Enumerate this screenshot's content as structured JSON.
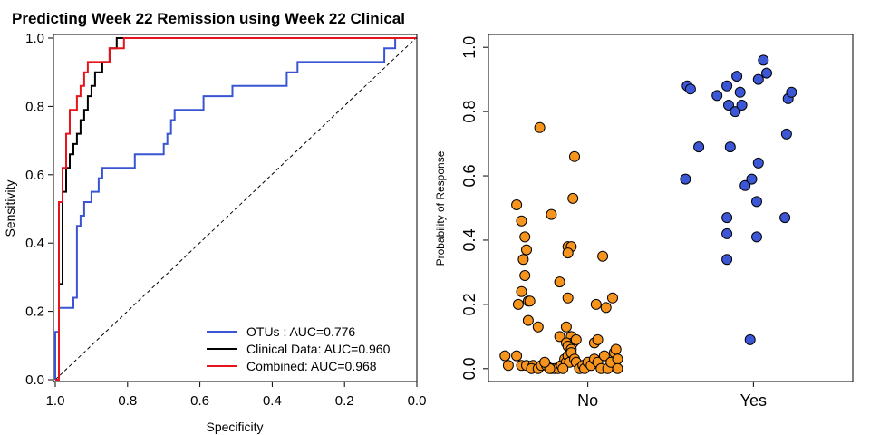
{
  "chart_data": [
    {
      "type": "line",
      "title": "Predicting Week 22 Remission using Week 22 Clinical",
      "xlabel": "Specificity",
      "ylabel": "Sensitivity",
      "xlim": [
        1.0,
        0.0
      ],
      "ylim": [
        0.0,
        1.0
      ],
      "x_reversed": true,
      "xticks": [
        "1.0",
        "0.8",
        "0.6",
        "0.4",
        "0.2",
        "0.0"
      ],
      "yticks": [
        "0.0",
        "0.2",
        "0.4",
        "0.6",
        "0.8",
        "1.0"
      ],
      "legend_position": "bottom-right",
      "reference_line": "diagonal dashed",
      "series": [
        {
          "name": "OTUs : AUC=0.776",
          "color": "#3955d3",
          "points": [
            [
              1.0,
              0.0
            ],
            [
              1.0,
              0.14
            ],
            [
              0.99,
              0.14
            ],
            [
              0.99,
              0.21
            ],
            [
              0.95,
              0.21
            ],
            [
              0.95,
              0.24
            ],
            [
              0.94,
              0.24
            ],
            [
              0.94,
              0.45
            ],
            [
              0.93,
              0.45
            ],
            [
              0.93,
              0.48
            ],
            [
              0.92,
              0.48
            ],
            [
              0.92,
              0.52
            ],
            [
              0.9,
              0.52
            ],
            [
              0.9,
              0.55
            ],
            [
              0.88,
              0.55
            ],
            [
              0.88,
              0.59
            ],
            [
              0.87,
              0.59
            ],
            [
              0.87,
              0.62
            ],
            [
              0.78,
              0.62
            ],
            [
              0.78,
              0.66
            ],
            [
              0.7,
              0.66
            ],
            [
              0.7,
              0.69
            ],
            [
              0.69,
              0.69
            ],
            [
              0.69,
              0.72
            ],
            [
              0.68,
              0.72
            ],
            [
              0.68,
              0.76
            ],
            [
              0.67,
              0.76
            ],
            [
              0.67,
              0.79
            ],
            [
              0.59,
              0.79
            ],
            [
              0.59,
              0.83
            ],
            [
              0.51,
              0.83
            ],
            [
              0.51,
              0.86
            ],
            [
              0.36,
              0.86
            ],
            [
              0.36,
              0.9
            ],
            [
              0.33,
              0.9
            ],
            [
              0.33,
              0.93
            ],
            [
              0.09,
              0.93
            ],
            [
              0.09,
              0.97
            ],
            [
              0.06,
              0.97
            ],
            [
              0.06,
              1.0
            ],
            [
              0.0,
              1.0
            ]
          ]
        },
        {
          "name": "Clinical Data: AUC=0.960",
          "color": "#000000",
          "points": [
            [
              1.0,
              0.0
            ],
            [
              0.99,
              0.0
            ],
            [
              0.99,
              0.28
            ],
            [
              0.98,
              0.28
            ],
            [
              0.98,
              0.55
            ],
            [
              0.97,
              0.55
            ],
            [
              0.97,
              0.62
            ],
            [
              0.96,
              0.62
            ],
            [
              0.96,
              0.66
            ],
            [
              0.95,
              0.66
            ],
            [
              0.95,
              0.69
            ],
            [
              0.94,
              0.69
            ],
            [
              0.94,
              0.72
            ],
            [
              0.93,
              0.72
            ],
            [
              0.93,
              0.76
            ],
            [
              0.92,
              0.76
            ],
            [
              0.92,
              0.79
            ],
            [
              0.91,
              0.79
            ],
            [
              0.91,
              0.83
            ],
            [
              0.9,
              0.83
            ],
            [
              0.9,
              0.86
            ],
            [
              0.89,
              0.86
            ],
            [
              0.89,
              0.9
            ],
            [
              0.87,
              0.9
            ],
            [
              0.87,
              0.93
            ],
            [
              0.85,
              0.93
            ],
            [
              0.85,
              0.97
            ],
            [
              0.83,
              0.97
            ],
            [
              0.83,
              1.0
            ],
            [
              0.0,
              1.0
            ]
          ]
        },
        {
          "name": "Combined: AUC=0.968",
          "color": "#e8141c",
          "points": [
            [
              1.0,
              0.0
            ],
            [
              0.99,
              0.0
            ],
            [
              0.99,
              0.52
            ],
            [
              0.98,
              0.52
            ],
            [
              0.98,
              0.62
            ],
            [
              0.97,
              0.62
            ],
            [
              0.97,
              0.72
            ],
            [
              0.96,
              0.72
            ],
            [
              0.96,
              0.79
            ],
            [
              0.94,
              0.79
            ],
            [
              0.94,
              0.83
            ],
            [
              0.93,
              0.83
            ],
            [
              0.93,
              0.86
            ],
            [
              0.92,
              0.86
            ],
            [
              0.92,
              0.9
            ],
            [
              0.91,
              0.9
            ],
            [
              0.91,
              0.93
            ],
            [
              0.85,
              0.93
            ],
            [
              0.85,
              0.97
            ],
            [
              0.81,
              0.97
            ],
            [
              0.81,
              1.0
            ],
            [
              0.0,
              1.0
            ]
          ]
        }
      ]
    },
    {
      "type": "scatter",
      "ylabel": "Probability of Response",
      "xlabel": "",
      "categories": [
        "No",
        "Yes"
      ],
      "yticks": [
        "0.0",
        "0.2",
        "0.4",
        "0.6",
        "0.8",
        "1.0"
      ],
      "ylim": [
        -0.04,
        1.04
      ],
      "series": [
        {
          "name": "No",
          "color": "#f7941d",
          "points": [
            [
              0.71,
              0.75
            ],
            [
              0.57,
              0.51
            ],
            [
              0.6,
              0.46
            ],
            [
              0.61,
              0.34
            ],
            [
              0.62,
              0.41
            ],
            [
              0.63,
              0.37
            ],
            [
              0.62,
              0.29
            ],
            [
              0.6,
              0.24
            ],
            [
              0.64,
              0.21
            ],
            [
              0.65,
              0.21
            ],
            [
              0.58,
              0.2
            ],
            [
              0.64,
              0.15
            ],
            [
              0.7,
              0.13
            ],
            [
              0.78,
              0.48
            ],
            [
              0.92,
              0.66
            ],
            [
              0.91,
              0.53
            ],
            [
              0.88,
              0.38
            ],
            [
              0.9,
              0.38
            ],
            [
              0.88,
              0.36
            ],
            [
              0.83,
              0.27
            ],
            [
              0.88,
              0.22
            ],
            [
              1.09,
              0.35
            ],
            [
              1.05,
              0.2
            ],
            [
              1.15,
              0.22
            ],
            [
              1.11,
              0.19
            ],
            [
              0.87,
              0.13
            ],
            [
              0.9,
              0.1
            ],
            [
              0.83,
              0.1
            ],
            [
              0.91,
              0.08
            ],
            [
              0.87,
              0.08
            ],
            [
              0.88,
              0.07
            ],
            [
              0.9,
              0.06
            ],
            [
              0.93,
              0.09
            ],
            [
              1.04,
              0.08
            ],
            [
              1.06,
              0.09
            ],
            [
              0.5,
              0.04
            ],
            [
              0.57,
              0.04
            ],
            [
              0.52,
              0.01
            ],
            [
              0.6,
              0.01
            ],
            [
              0.63,
              0.01
            ],
            [
              0.67,
              0.01
            ],
            [
              0.66,
              0.0
            ],
            [
              0.7,
              0.0
            ],
            [
              0.72,
              0.01
            ],
            [
              0.75,
              0.01
            ],
            [
              0.78,
              0.0
            ],
            [
              0.8,
              0.0
            ],
            [
              0.82,
              0.0
            ],
            [
              0.84,
              0.01
            ],
            [
              0.86,
              0.03
            ],
            [
              0.87,
              0.02
            ],
            [
              0.88,
              0.04
            ],
            [
              0.89,
              0.02
            ],
            [
              0.9,
              0.05
            ],
            [
              0.92,
              0.03
            ],
            [
              0.93,
              0.02
            ],
            [
              0.95,
              0.0
            ],
            [
              0.97,
              0.01
            ],
            [
              0.98,
              0.0
            ],
            [
              1.0,
              0.02
            ],
            [
              1.02,
              0.01
            ],
            [
              1.04,
              0.03
            ],
            [
              1.06,
              0.02
            ],
            [
              1.08,
              0.0
            ],
            [
              1.1,
              0.04
            ],
            [
              1.12,
              0.0
            ],
            [
              1.14,
              0.02
            ],
            [
              1.16,
              0.05
            ],
            [
              1.17,
              0.06
            ],
            [
              1.18,
              0.03
            ],
            [
              1.18,
              0.0
            ],
            [
              0.85,
              0.0
            ],
            [
              0.77,
              0.0
            ],
            [
              0.74,
              0.02
            ]
          ]
        },
        {
          "name": "Yes",
          "color": "#3b57d6",
          "points": [
            [
              1.6,
              0.88
            ],
            [
              1.62,
              0.87
            ],
            [
              1.59,
              0.59
            ],
            [
              1.67,
              0.69
            ],
            [
              1.78,
              0.85
            ],
            [
              1.84,
              0.88
            ],
            [
              1.85,
              0.82
            ],
            [
              1.86,
              0.69
            ],
            [
              1.89,
              0.8
            ],
            [
              1.9,
              0.91
            ],
            [
              1.92,
              0.86
            ],
            [
              1.93,
              0.82
            ],
            [
              1.84,
              0.47
            ],
            [
              1.84,
              0.42
            ],
            [
              1.84,
              0.34
            ],
            [
              1.95,
              0.57
            ],
            [
              1.99,
              0.59
            ],
            [
              2.03,
              0.64
            ],
            [
              2.02,
              0.52
            ],
            [
              2.02,
              0.41
            ],
            [
              2.03,
              0.9
            ],
            [
              2.06,
              0.96
            ],
            [
              2.08,
              0.92
            ],
            [
              1.98,
              0.09
            ],
            [
              2.19,
              0.47
            ],
            [
              2.2,
              0.73
            ],
            [
              2.21,
              0.84
            ],
            [
              2.23,
              0.86
            ]
          ]
        }
      ]
    }
  ]
}
